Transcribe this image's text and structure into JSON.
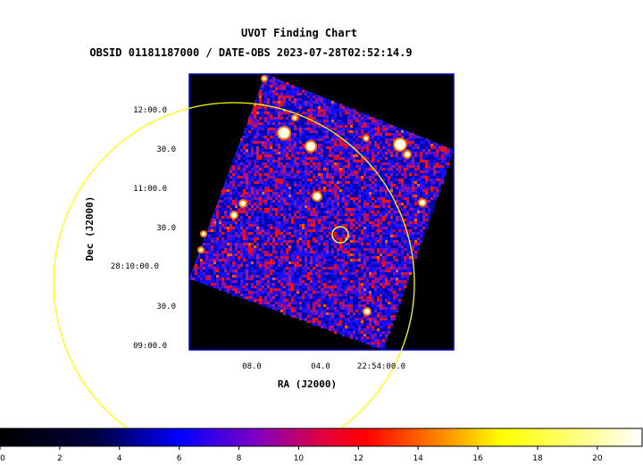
{
  "chart_data": {
    "type": "heatmap",
    "title": "UVOT Finding Chart",
    "subtitle": "OBSID 01181187000 / DATE-OBS 2023-07-28T02:52:14.9",
    "xlabel": "RA (J2000)",
    "ylabel": "Dec (J2000)",
    "x_ticks": [
      "08.0",
      "04.0",
      "22:54:00.0"
    ],
    "y_ticks": [
      "12:00.0",
      "30.0",
      "11:00.0",
      "30.0",
      "28:10:00.0",
      "30.0",
      "09:00.0"
    ],
    "colorbar": {
      "range": [
        0,
        21.5
      ],
      "ticks": [
        "0",
        "2",
        "4",
        "6",
        "8",
        "10",
        "12",
        "14",
        "16",
        "18",
        "20"
      ],
      "colormap": "heat"
    },
    "grid": false,
    "overlays": [
      "large yellow circle",
      "small yellow circle at target"
    ],
    "colors": {
      "background": "#000000",
      "frame": "#0000cc",
      "circle": "#ffff00"
    }
  }
}
